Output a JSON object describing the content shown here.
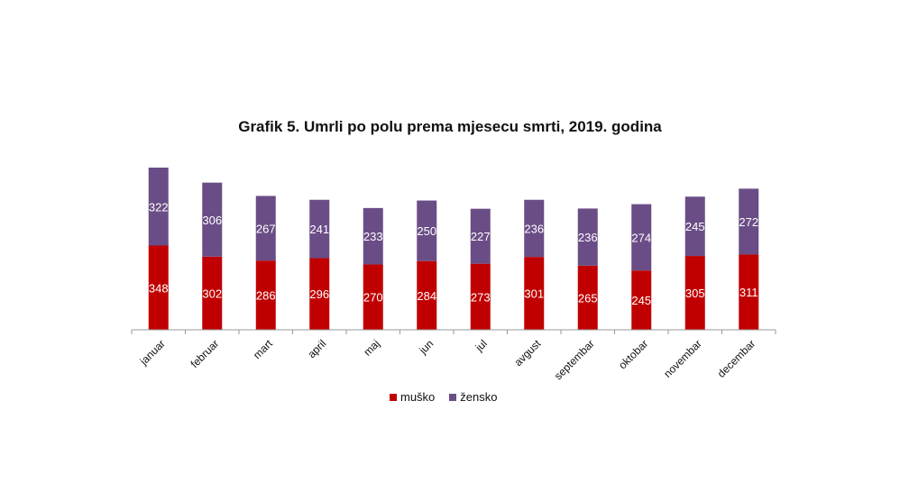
{
  "chart_data": {
    "type": "bar",
    "stacked": true,
    "title": "Grafik 5. Umrli po polu prema mjesecu smrti, 2019. godina",
    "categories": [
      "januar",
      "februar",
      "mart",
      "april",
      "maj",
      "jun",
      "jul",
      "avgust",
      "septembar",
      "oktobar",
      "novembar",
      "decembar"
    ],
    "series": [
      {
        "name": "muško",
        "color": "#c00000",
        "values": [
          348,
          302,
          286,
          296,
          270,
          284,
          273,
          301,
          265,
          245,
          305,
          311
        ]
      },
      {
        "name": "žensko",
        "color": "#6a4d86",
        "values": [
          322,
          306,
          267,
          241,
          233,
          250,
          227,
          236,
          236,
          274,
          245,
          272
        ]
      }
    ],
    "xlabel": "",
    "ylabel": "",
    "ylim": [
      0,
      670
    ],
    "grid": false,
    "legend": "bottom"
  }
}
